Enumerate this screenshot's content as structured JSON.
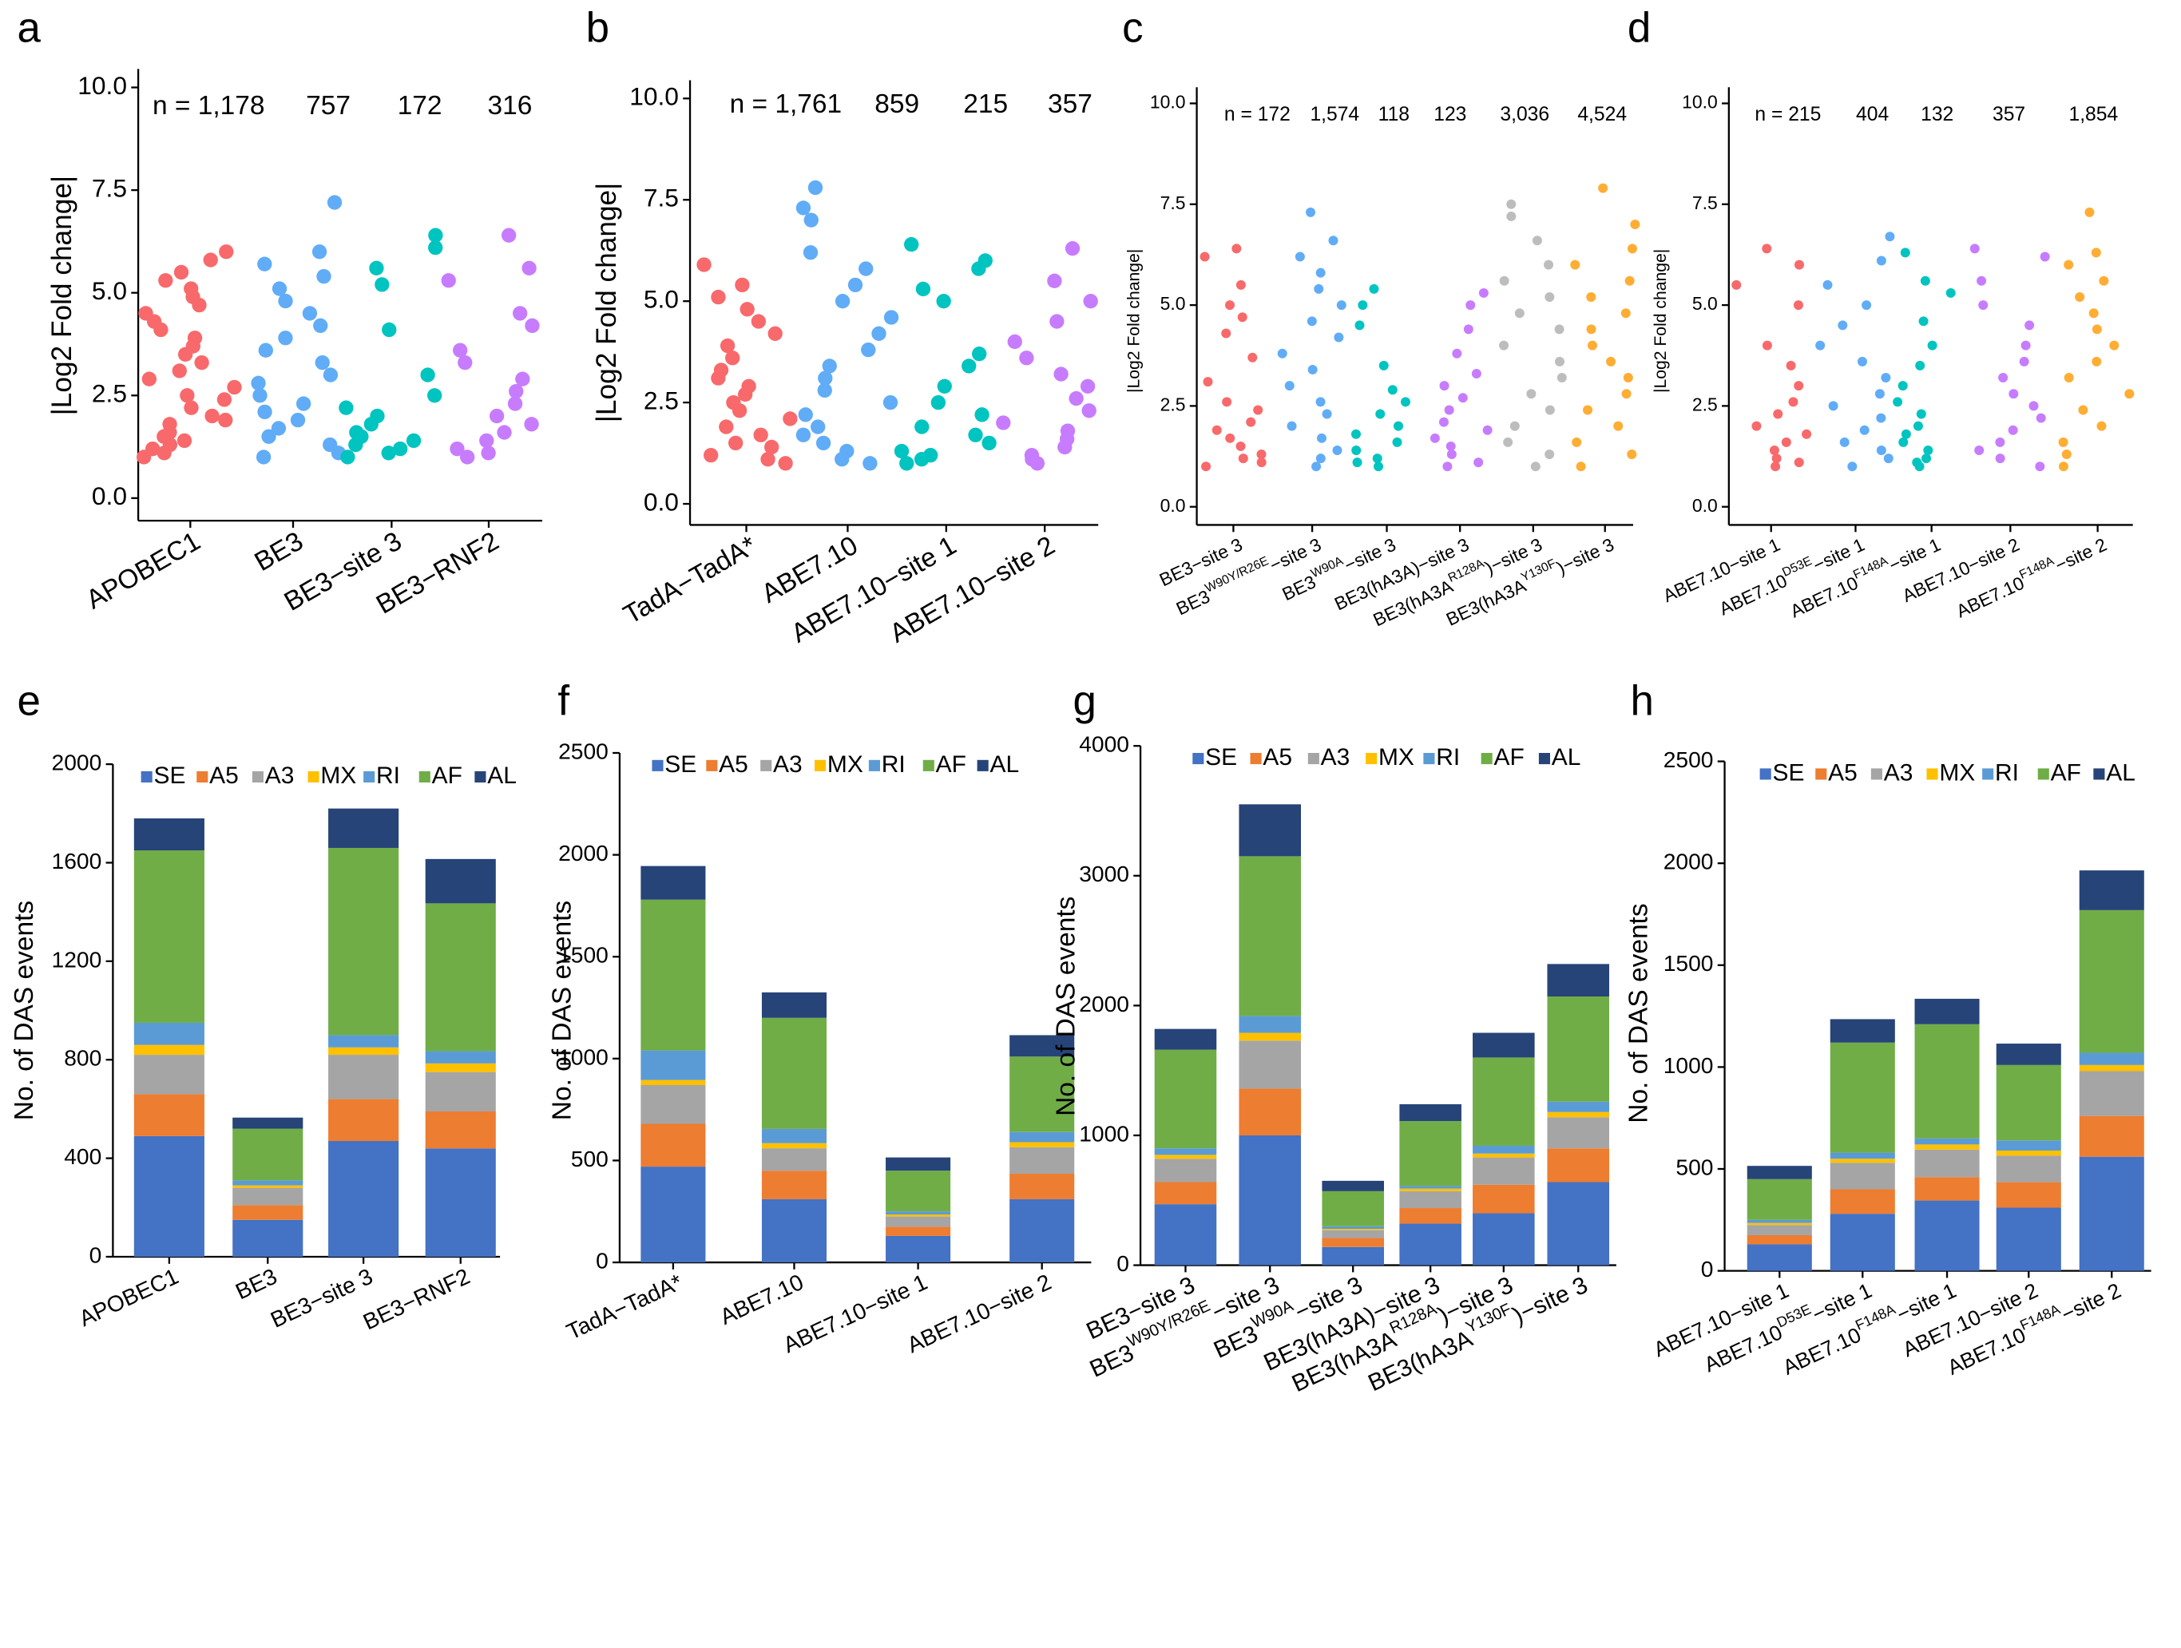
{
  "chart_data": [
    {
      "panel_label": "a",
      "type": "strip",
      "ylabel": "|Log2 Fold change|",
      "ylim": [
        -0.55,
        10.45
      ],
      "yticks": [
        {
          "value": 0,
          "label": "0.0"
        },
        2.5,
        {
          "value": 5,
          "label": "5.0"
        },
        7.5,
        {
          "value": 10,
          "label": "10.0"
        }
      ],
      "categories": [
        "APOBEC1",
        "BE3",
        "BE3−site 3",
        "BE3−RNF2"
      ],
      "n_labels": [
        "n = 1,178",
        "757",
        "172",
        "316"
      ],
      "colors": [
        "#f8696b",
        "#61acf6",
        "#00c4c0",
        "#c77cff"
      ],
      "values": [
        [
          1.0,
          1.1,
          1.2,
          1.3,
          1.4,
          1.5,
          1.6,
          1.8,
          1.9,
          2.0,
          2.2,
          2.4,
          2.5,
          2.7,
          2.9,
          3.1,
          3.3,
          3.5,
          3.7,
          3.9,
          4.1,
          4.3,
          4.5,
          4.7,
          4.9,
          5.1,
          5.3,
          5.5,
          5.8,
          6.0
        ],
        [
          1.0,
          1.1,
          1.3,
          1.5,
          1.7,
          1.9,
          2.1,
          2.3,
          2.5,
          2.8,
          3.0,
          3.3,
          3.6,
          3.9,
          4.2,
          4.5,
          4.8,
          5.1,
          5.4,
          5.7,
          6.0,
          7.2
        ],
        [
          1.0,
          1.1,
          1.2,
          1.3,
          1.4,
          1.5,
          1.6,
          1.8,
          2.0,
          2.2,
          2.5,
          3.0,
          4.1,
          5.2,
          5.6,
          6.1,
          6.4
        ],
        [
          1.0,
          1.1,
          1.2,
          1.4,
          1.6,
          1.8,
          2.0,
          2.3,
          2.6,
          2.9,
          3.3,
          3.6,
          4.2,
          4.5,
          5.3,
          5.6,
          6.4
        ]
      ]
    },
    {
      "panel_label": "b",
      "type": "strip",
      "ylabel": "|Log2 Fold change|",
      "ylim": [
        -0.52,
        10.45
      ],
      "yticks": [
        {
          "value": 0,
          "label": "0.0"
        },
        2.5,
        {
          "value": 5,
          "label": "5.0"
        },
        7.5,
        {
          "value": 10,
          "label": "10.0"
        }
      ],
      "categories": [
        "TadA−TadA*",
        "ABE7.10",
        "ABE7.10−site 1",
        "ABE7.10−site 2"
      ],
      "n_labels": [
        "n = 1,761",
        "859",
        "215",
        "357"
      ],
      "colors": [
        "#f8696b",
        "#61acf6",
        "#00c4c0",
        "#c77cff"
      ],
      "values": [
        [
          1.0,
          1.1,
          1.2,
          1.4,
          1.5,
          1.7,
          1.9,
          2.1,
          2.3,
          2.5,
          2.7,
          2.9,
          3.1,
          3.3,
          3.6,
          3.9,
          4.2,
          4.5,
          4.8,
          5.1,
          5.4,
          5.9
        ],
        [
          1.0,
          1.1,
          1.3,
          1.5,
          1.7,
          1.9,
          2.2,
          2.5,
          2.8,
          3.1,
          3.4,
          3.8,
          4.2,
          4.6,
          5.0,
          5.4,
          5.8,
          6.2,
          7.0,
          7.3,
          7.8
        ],
        [
          1.0,
          1.1,
          1.2,
          1.3,
          1.5,
          1.7,
          1.9,
          2.2,
          2.5,
          2.9,
          3.4,
          3.7,
          5.0,
          5.3,
          5.8,
          6.0,
          6.4
        ],
        [
          1.0,
          1.1,
          1.2,
          1.4,
          1.6,
          1.8,
          2.0,
          2.3,
          2.6,
          2.9,
          3.2,
          3.6,
          4.0,
          4.5,
          5.0,
          5.5,
          6.3
        ]
      ]
    },
    {
      "panel_label": "c",
      "type": "strip",
      "ylabel": "|Log2 Fold change|",
      "ylim": [
        -0.45,
        10.4
      ],
      "yticks": [
        {
          "value": 0,
          "label": "0.0"
        },
        2.5,
        {
          "value": 5,
          "label": "5.0"
        },
        7.5,
        {
          "value": 10,
          "label": "10.0"
        }
      ],
      "categories": [
        "BE3−site 3",
        [
          "BE3",
          "W90Y/R26E",
          "−site 3"
        ],
        [
          "BE3",
          "W90A",
          "−site 3"
        ],
        "BE3(hA3A)−site 3",
        [
          "BE3(hA3A",
          "R128A",
          ")−site 3"
        ],
        [
          "BE3(hA3A",
          "Y130F",
          ")−site 3"
        ]
      ],
      "n_labels": [
        "n = 172",
        "1,574",
        "118",
        "123",
        "3,036",
        "4,524"
      ],
      "colors": [
        "#f8696b",
        "#61acf6",
        "#00c4c0",
        "#c77cff",
        "#bdbdbd",
        "#ffad33"
      ],
      "values": [
        [
          1.0,
          1.1,
          1.2,
          1.3,
          1.5,
          1.7,
          1.9,
          2.1,
          2.4,
          2.6,
          3.1,
          3.7,
          4.3,
          4.7,
          5.0,
          5.5,
          6.2,
          6.4
        ],
        [
          1.0,
          1.2,
          1.4,
          1.7,
          2.0,
          2.3,
          2.6,
          3.0,
          3.4,
          3.8,
          4.2,
          4.6,
          5.0,
          5.4,
          5.8,
          6.2,
          6.6,
          7.3
        ],
        [
          1.0,
          1.1,
          1.2,
          1.4,
          1.6,
          1.8,
          2.0,
          2.3,
          2.6,
          2.9,
          3.5,
          4.5,
          5.0,
          5.4
        ],
        [
          1.0,
          1.1,
          1.3,
          1.5,
          1.7,
          1.9,
          2.1,
          2.4,
          2.7,
          3.0,
          3.3,
          3.8,
          4.4,
          5.0,
          5.3
        ],
        [
          1.0,
          1.3,
          1.6,
          2.0,
          2.4,
          2.8,
          3.2,
          3.6,
          4.0,
          4.4,
          4.8,
          5.2,
          5.6,
          6.0,
          6.6,
          7.2,
          7.5
        ],
        [
          1.0,
          1.3,
          1.6,
          2.0,
          2.4,
          2.8,
          3.2,
          3.6,
          4.0,
          4.4,
          4.8,
          5.2,
          5.6,
          6.0,
          6.4,
          7.0,
          7.9
        ]
      ]
    },
    {
      "panel_label": "d",
      "type": "strip",
      "ylabel": "|Log2 Fold change|",
      "ylim": [
        -0.45,
        10.4
      ],
      "yticks": [
        {
          "value": 0,
          "label": "0.0"
        },
        2.5,
        {
          "value": 5,
          "label": "5.0"
        },
        7.5,
        {
          "value": 10,
          "label": "10.0"
        }
      ],
      "categories": [
        "ABE7.10−site 1",
        [
          "ABE7.10",
          "D53E",
          "−site 1"
        ],
        [
          "ABE7.10",
          "F148A",
          "−site 1"
        ],
        "ABE7.10−site 2",
        [
          "ABE7.10",
          "F148A",
          "−site 2"
        ]
      ],
      "n_labels": [
        "n = 215",
        "404",
        "132",
        "357",
        "1,854"
      ],
      "colors": [
        "#f8696b",
        "#61acf6",
        "#00c4c0",
        "#c77cff",
        "#ffad33"
      ],
      "values": [
        [
          1.0,
          1.1,
          1.2,
          1.4,
          1.6,
          1.8,
          2.0,
          2.3,
          2.6,
          3.0,
          3.5,
          4.0,
          5.0,
          5.5,
          6.0,
          6.4
        ],
        [
          1.0,
          1.2,
          1.4,
          1.6,
          1.9,
          2.2,
          2.5,
          2.8,
          3.2,
          3.6,
          4.0,
          4.5,
          5.0,
          5.5,
          6.1,
          6.7
        ],
        [
          1.0,
          1.1,
          1.2,
          1.4,
          1.6,
          1.8,
          2.0,
          2.3,
          2.6,
          3.0,
          3.5,
          4.0,
          4.6,
          5.3,
          5.6,
          6.3
        ],
        [
          1.0,
          1.2,
          1.4,
          1.6,
          1.9,
          2.2,
          2.5,
          2.8,
          3.2,
          3.6,
          4.0,
          4.5,
          5.0,
          5.6,
          6.2,
          6.4
        ],
        [
          1.0,
          1.3,
          1.6,
          2.0,
          2.4,
          2.8,
          3.2,
          3.6,
          4.0,
          4.4,
          4.8,
          5.2,
          5.6,
          6.0,
          6.3,
          7.3
        ]
      ]
    },
    {
      "panel_label": "e",
      "type": "bar",
      "ylabel": "No. of DAS events",
      "ylim": [
        0,
        2000
      ],
      "yticks": [
        0,
        400,
        800,
        1200,
        1600,
        2000
      ],
      "categories": [
        "APOBEC1",
        "BE3",
        "BE3−site 3",
        "BE3−RNF2"
      ],
      "series": [
        {
          "name": "SE",
          "color": "#4472c4",
          "values": [
            490,
            150,
            470,
            440
          ]
        },
        {
          "name": "A5",
          "color": "#ed7d31",
          "values": [
            170,
            60,
            170,
            150
          ]
        },
        {
          "name": "A3",
          "color": "#a5a5a5",
          "values": [
            160,
            70,
            180,
            160
          ]
        },
        {
          "name": "MX",
          "color": "#ffc000",
          "values": [
            40,
            10,
            30,
            35
          ]
        },
        {
          "name": "RI",
          "color": "#5b9bd5",
          "values": [
            90,
            20,
            50,
            50
          ]
        },
        {
          "name": "AF",
          "color": "#70ad47",
          "values": [
            700,
            210,
            760,
            600
          ]
        },
        {
          "name": "AL",
          "color": "#264478",
          "values": [
            130,
            45,
            160,
            180
          ]
        }
      ]
    },
    {
      "panel_label": "f",
      "type": "bar",
      "ylabel": "No. of DAS events",
      "ylim": [
        0,
        2500
      ],
      "yticks": [
        0,
        500,
        1000,
        1500,
        2000,
        2500
      ],
      "categories": [
        "TadA−TadA*",
        "ABE7.10",
        "ABE7.10−site 1",
        "ABE7.10−site 2"
      ],
      "series": [
        {
          "name": "SE",
          "color": "#4472c4",
          "values": [
            470,
            310,
            130,
            310
          ]
        },
        {
          "name": "A5",
          "color": "#ed7d31",
          "values": [
            210,
            140,
            45,
            125
          ]
        },
        {
          "name": "A3",
          "color": "#a5a5a5",
          "values": [
            190,
            110,
            50,
            130
          ]
        },
        {
          "name": "MX",
          "color": "#ffc000",
          "values": [
            25,
            25,
            10,
            25
          ]
        },
        {
          "name": "RI",
          "color": "#5b9bd5",
          "values": [
            145,
            70,
            15,
            50
          ]
        },
        {
          "name": "AF",
          "color": "#70ad47",
          "values": [
            740,
            545,
            200,
            370
          ]
        },
        {
          "name": "AL",
          "color": "#264478",
          "values": [
            165,
            125,
            65,
            105
          ]
        }
      ]
    },
    {
      "panel_label": "g",
      "type": "bar",
      "ylabel": "No. of DAS events",
      "ylim": [
        0,
        4000
      ],
      "yticks": [
        0,
        1000,
        2000,
        3000,
        4000
      ],
      "categories": [
        "BE3−site 3",
        [
          "BE3",
          "W90Y/R26E",
          "−site 3"
        ],
        [
          "BE3",
          "W90A",
          "−site 3"
        ],
        "BE3(hA3A)−site 3",
        [
          "BE3(hA3A",
          "R128A",
          ")−site 3"
        ],
        [
          "BE3(hA3A",
          "Y130F",
          ")−site 3"
        ]
      ],
      "series": [
        {
          "name": "SE",
          "color": "#4472c4",
          "values": [
            470,
            1000,
            140,
            320,
            400,
            640
          ]
        },
        {
          "name": "A5",
          "color": "#ed7d31",
          "values": [
            170,
            360,
            70,
            120,
            220,
            260
          ]
        },
        {
          "name": "A3",
          "color": "#a5a5a5",
          "values": [
            180,
            370,
            60,
            130,
            210,
            240
          ]
        },
        {
          "name": "MX",
          "color": "#ffc000",
          "values": [
            30,
            60,
            10,
            20,
            30,
            40
          ]
        },
        {
          "name": "RI",
          "color": "#5b9bd5",
          "values": [
            50,
            130,
            20,
            20,
            60,
            80
          ]
        },
        {
          "name": "AF",
          "color": "#70ad47",
          "values": [
            760,
            1230,
            270,
            500,
            680,
            810
          ]
        },
        {
          "name": "AL",
          "color": "#264478",
          "values": [
            160,
            400,
            80,
            130,
            190,
            250
          ]
        }
      ]
    },
    {
      "panel_label": "h",
      "type": "bar",
      "ylabel": "No. of DAS events",
      "ylim": [
        0,
        2500
      ],
      "yticks": [
        0,
        500,
        1000,
        1500,
        2000,
        2500
      ],
      "categories": [
        "ABE7.10−site 1",
        [
          "ABE7.10",
          "D53E",
          "−site 1"
        ],
        [
          "ABE7.10",
          "F148A",
          "−site 1"
        ],
        "ABE7.10−site 2",
        [
          "ABE7.10",
          "F148A",
          "−site 2"
        ]
      ],
      "series": [
        {
          "name": "SE",
          "color": "#4472c4",
          "values": [
            130,
            280,
            345,
            310,
            560
          ]
        },
        {
          "name": "A5",
          "color": "#ed7d31",
          "values": [
            45,
            120,
            115,
            125,
            200
          ]
        },
        {
          "name": "A3",
          "color": "#a5a5a5",
          "values": [
            50,
            130,
            135,
            130,
            220
          ]
        },
        {
          "name": "MX",
          "color": "#ffc000",
          "values": [
            10,
            20,
            25,
            25,
            30
          ]
        },
        {
          "name": "RI",
          "color": "#5b9bd5",
          "values": [
            15,
            30,
            30,
            50,
            60
          ]
        },
        {
          "name": "AF",
          "color": "#70ad47",
          "values": [
            200,
            540,
            560,
            370,
            700
          ]
        },
        {
          "name": "AL",
          "color": "#264478",
          "values": [
            65,
            115,
            125,
            105,
            195
          ]
        }
      ]
    }
  ]
}
